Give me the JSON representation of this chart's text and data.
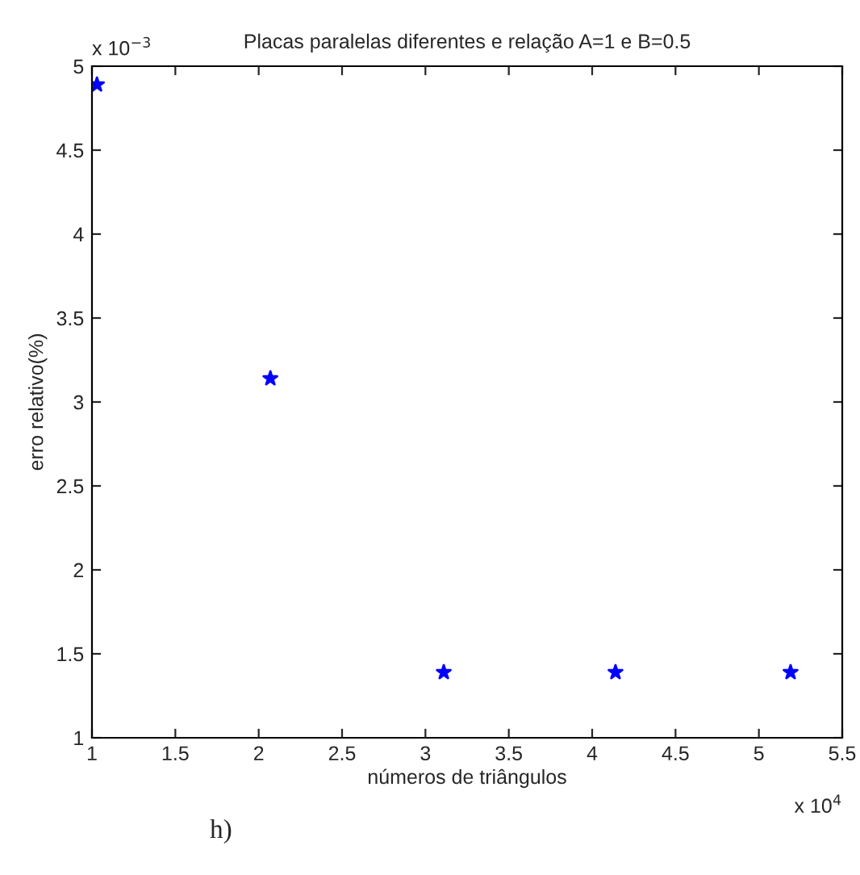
{
  "chart_data": {
    "type": "scatter",
    "title": "Placas paralelas diferentes e relação A=1 e B=0.5",
    "xlabel": "números de triângulos",
    "ylabel": "erro relativo(%)",
    "x": [
      1.03,
      2.07,
      3.11,
      4.14,
      5.19
    ],
    "series": [
      {
        "color": "#0000ff",
        "values": [
          4.89,
          3.14,
          1.39,
          1.39,
          1.39
        ]
      }
    ],
    "marker": "star",
    "xlim": [
      1,
      5.5
    ],
    "xticks": [
      1,
      1.5,
      2,
      2.5,
      3,
      3.5,
      4,
      4.5,
      5,
      5.5
    ],
    "ylim": [
      1,
      5
    ],
    "yticks": [
      1,
      1.5,
      2,
      2.5,
      3,
      3.5,
      4,
      4.5,
      5
    ],
    "grid": false,
    "legend": false,
    "annotations": [
      "x 10$^{−3}$",
      "x 10$^{4}$",
      "h)"
    ]
  }
}
